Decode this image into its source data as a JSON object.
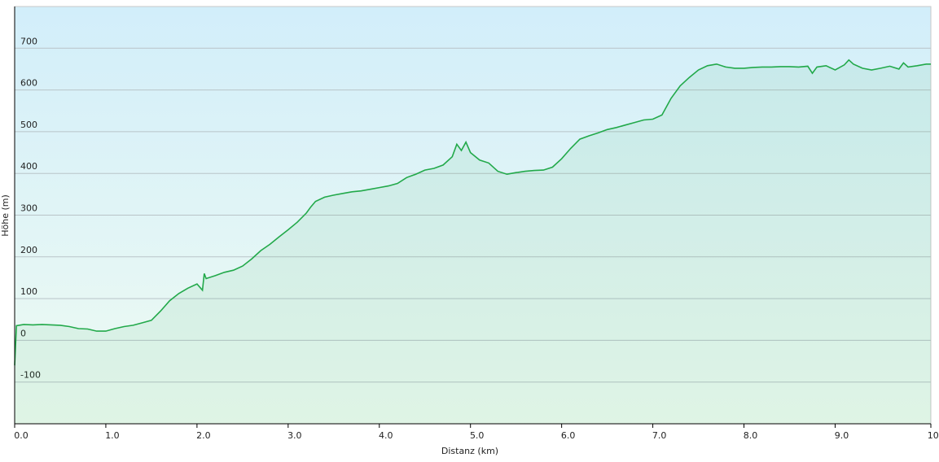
{
  "chart_data": {
    "type": "area",
    "x_label": "Distanz  (km)",
    "y_label": "Höhe (m)",
    "color": "#22a94a",
    "grid": true,
    "xlim": [
      0,
      10.05
    ],
    "ylim": [
      -200,
      800
    ],
    "xticks": [
      {
        "value": 0,
        "label": "0.0"
      },
      {
        "value": 1,
        "label": "1.0"
      },
      {
        "value": 2,
        "label": "2.0"
      },
      {
        "value": 3,
        "label": "3.0"
      },
      {
        "value": 4,
        "label": "4.0"
      },
      {
        "value": 5,
        "label": "5.0"
      },
      {
        "value": 6,
        "label": "6.0"
      },
      {
        "value": 7,
        "label": "7.0"
      },
      {
        "value": 8,
        "label": "8.0"
      },
      {
        "value": 9,
        "label": "9.0"
      },
      {
        "value": 10.05,
        "label": "10.1"
      }
    ],
    "yticks": [
      -100,
      0,
      100,
      200,
      300,
      400,
      500,
      600,
      700
    ],
    "x": [
      0,
      0.02,
      0.1,
      0.2,
      0.3,
      0.4,
      0.5,
      0.6,
      0.7,
      0.8,
      0.9,
      1.0,
      1.1,
      1.2,
      1.3,
      1.4,
      1.5,
      1.6,
      1.7,
      1.8,
      1.9,
      2.0,
      2.06,
      2.08,
      2.1,
      2.2,
      2.3,
      2.4,
      2.5,
      2.6,
      2.7,
      2.8,
      2.9,
      3.0,
      3.1,
      3.2,
      3.25,
      3.3,
      3.4,
      3.5,
      3.6,
      3.7,
      3.8,
      3.9,
      4.0,
      4.1,
      4.2,
      4.3,
      4.4,
      4.5,
      4.6,
      4.7,
      4.8,
      4.85,
      4.9,
      4.95,
      5.0,
      5.1,
      5.2,
      5.3,
      5.4,
      5.5,
      5.6,
      5.7,
      5.8,
      5.9,
      6.0,
      6.1,
      6.2,
      6.3,
      6.4,
      6.5,
      6.6,
      6.7,
      6.8,
      6.9,
      7.0,
      7.1,
      7.2,
      7.3,
      7.4,
      7.5,
      7.6,
      7.7,
      7.8,
      7.9,
      8.0,
      8.1,
      8.2,
      8.3,
      8.4,
      8.5,
      8.6,
      8.7,
      8.75,
      8.8,
      8.9,
      9.0,
      9.1,
      9.15,
      9.2,
      9.3,
      9.4,
      9.5,
      9.6,
      9.7,
      9.75,
      9.8,
      9.9,
      10.0,
      10.05
    ],
    "values": [
      -60,
      35,
      38,
      37,
      38,
      37,
      36,
      33,
      28,
      27,
      22,
      22,
      28,
      33,
      36,
      42,
      48,
      70,
      95,
      112,
      125,
      135,
      120,
      160,
      148,
      155,
      163,
      168,
      178,
      195,
      215,
      230,
      248,
      265,
      283,
      305,
      320,
      333,
      343,
      348,
      352,
      356,
      358,
      362,
      366,
      370,
      376,
      390,
      398,
      408,
      412,
      420,
      440,
      470,
      455,
      475,
      450,
      432,
      425,
      405,
      398,
      402,
      405,
      407,
      408,
      415,
      435,
      460,
      482,
      490,
      497,
      505,
      510,
      516,
      522,
      528,
      530,
      540,
      580,
      610,
      630,
      648,
      658,
      662,
      655,
      652,
      652,
      654,
      655,
      655,
      656,
      656,
      655,
      657,
      640,
      655,
      658,
      648,
      660,
      672,
      662,
      652,
      648,
      652,
      657,
      650,
      665,
      655,
      658,
      662,
      662
    ]
  }
}
